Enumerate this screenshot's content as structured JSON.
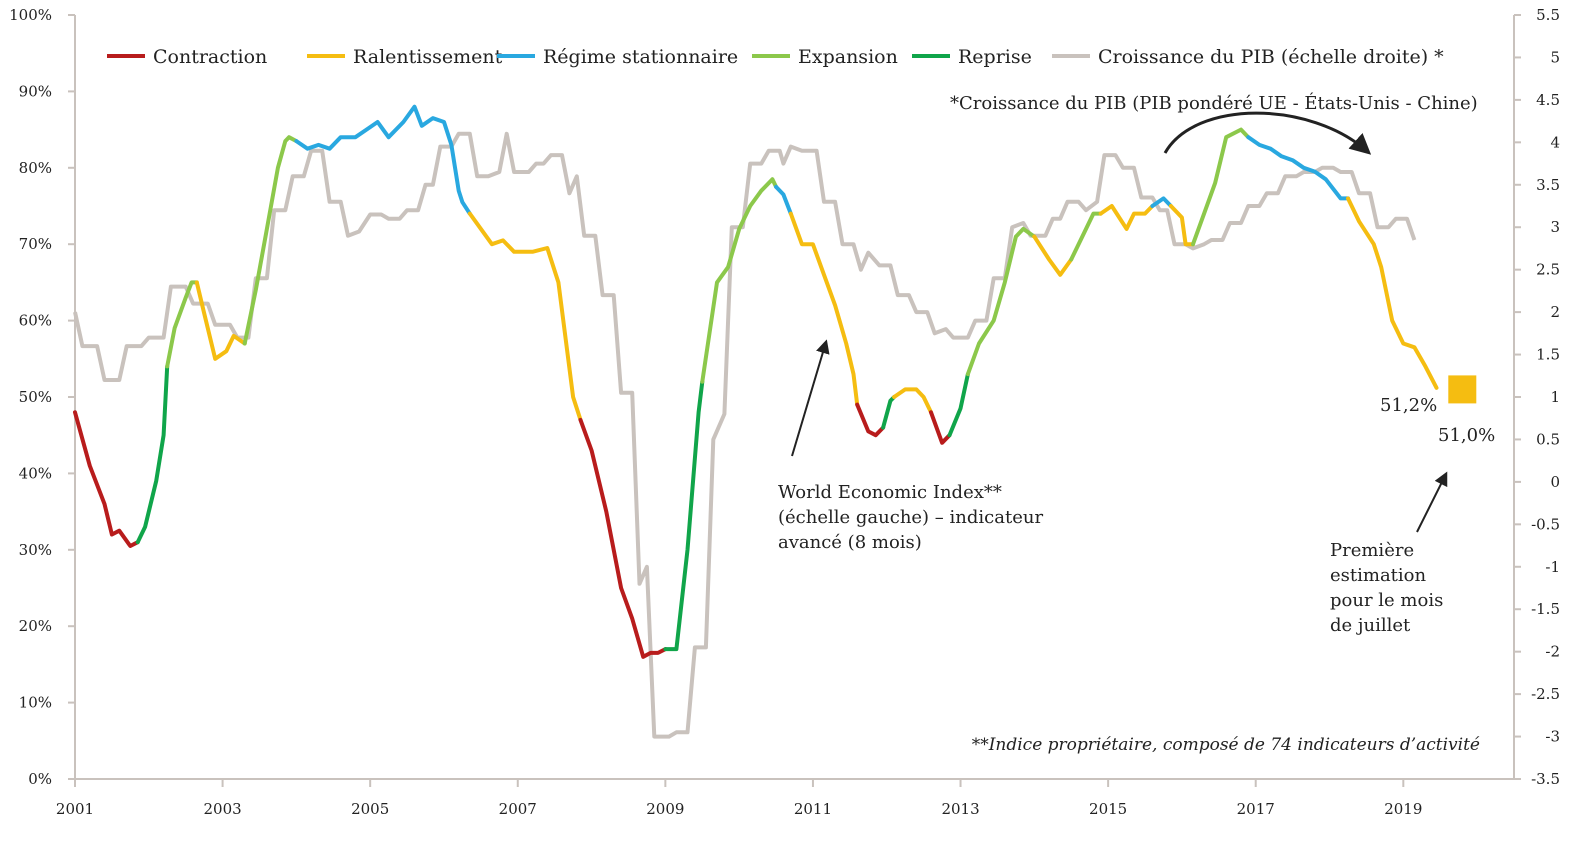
{
  "chart_data": {
    "type": "line",
    "title": "",
    "xlabel": "",
    "ylabel_left": "",
    "ylabel_right": "",
    "x_ticks": [
      "2001",
      "2003",
      "2005",
      "2007",
      "2009",
      "2011",
      "2013",
      "2015",
      "2017",
      "2019"
    ],
    "x_range": [
      2001,
      2020.5
    ],
    "y_left": {
      "range": [
        0,
        100
      ],
      "ticks": [
        "0%",
        "10%",
        "20%",
        "30%",
        "40%",
        "50%",
        "60%",
        "70%",
        "80%",
        "90%",
        "100%"
      ]
    },
    "y_right": {
      "range": [
        -3.5,
        5.5
      ],
      "ticks": [
        "-3.5",
        "-3",
        "-2.5",
        "-2",
        "-1.5",
        "-1",
        "-0.5",
        "0",
        "0.5",
        "1",
        "1.5",
        "2",
        "2.5",
        "3",
        "3.5",
        "4",
        "4.5",
        "5",
        "5.5"
      ]
    },
    "grid": false,
    "legend": {
      "placement": "top",
      "items": [
        {
          "label": "Contraction",
          "color": "#b81c1c"
        },
        {
          "label": "Ralentissement",
          "color": "#f5bd11"
        },
        {
          "label": "Régime stationnaire",
          "color": "#29a8e0"
        },
        {
          "label": "Expansion",
          "color": "#8cc84b"
        },
        {
          "label": "Reprise",
          "color": "#10a54a"
        },
        {
          "label": "Croissance du PIB (échelle droite) *",
          "color": "#c9c2bd"
        }
      ]
    },
    "phase_colors": {
      "C": "#b81c1c",
      "R": "#f5bd11",
      "S": "#29a8e0",
      "E": "#8cc84b",
      "P": "#10a54a"
    },
    "wei_series": {
      "name": "World Economic Index**",
      "points": [
        [
          2001.0,
          48,
          "C"
        ],
        [
          2001.2,
          41,
          "C"
        ],
        [
          2001.4,
          36,
          "C"
        ],
        [
          2001.5,
          32,
          "C"
        ],
        [
          2001.6,
          32.5,
          "C"
        ],
        [
          2001.75,
          30.5,
          "C"
        ],
        [
          2001.85,
          31,
          "P"
        ],
        [
          2001.95,
          33,
          "P"
        ],
        [
          2002.1,
          39,
          "P"
        ],
        [
          2002.2,
          45,
          "P"
        ],
        [
          2002.25,
          54,
          "E"
        ],
        [
          2002.35,
          59,
          "E"
        ],
        [
          2002.5,
          63,
          "E"
        ],
        [
          2002.58,
          65,
          "E"
        ],
        [
          2002.65,
          65,
          "R"
        ],
        [
          2002.75,
          61,
          "R"
        ],
        [
          2002.9,
          55,
          "R"
        ],
        [
          2003.05,
          56,
          "R"
        ],
        [
          2003.15,
          58,
          "R"
        ],
        [
          2003.3,
          57,
          "E"
        ],
        [
          2003.45,
          64,
          "E"
        ],
        [
          2003.6,
          72,
          "E"
        ],
        [
          2003.75,
          80,
          "E"
        ],
        [
          2003.85,
          83.5,
          "E"
        ],
        [
          2003.9,
          84,
          "E"
        ],
        [
          2004.0,
          83.5,
          "S"
        ],
        [
          2004.15,
          82.5,
          "S"
        ],
        [
          2004.3,
          83,
          "S"
        ],
        [
          2004.45,
          82.5,
          "S"
        ],
        [
          2004.6,
          84,
          "S"
        ],
        [
          2004.8,
          84,
          "S"
        ],
        [
          2004.95,
          85,
          "S"
        ],
        [
          2005.1,
          86,
          "S"
        ],
        [
          2005.25,
          84,
          "S"
        ],
        [
          2005.45,
          86,
          "S"
        ],
        [
          2005.6,
          88,
          "S"
        ],
        [
          2005.7,
          85.5,
          "S"
        ],
        [
          2005.85,
          86.5,
          "S"
        ],
        [
          2006.0,
          86,
          "S"
        ],
        [
          2006.1,
          83,
          "S"
        ],
        [
          2006.2,
          77,
          "S"
        ],
        [
          2006.25,
          75.5,
          "S"
        ],
        [
          2006.35,
          74,
          "R"
        ],
        [
          2006.5,
          72,
          "R"
        ],
        [
          2006.65,
          70,
          "R"
        ],
        [
          2006.8,
          70.5,
          "R"
        ],
        [
          2006.95,
          69,
          "R"
        ],
        [
          2007.2,
          69,
          "R"
        ],
        [
          2007.4,
          69.5,
          "R"
        ],
        [
          2007.55,
          65,
          "R"
        ],
        [
          2007.75,
          50,
          "R"
        ],
        [
          2007.85,
          47,
          "C"
        ],
        [
          2008.0,
          43,
          "C"
        ],
        [
          2008.2,
          35,
          "C"
        ],
        [
          2008.4,
          25,
          "C"
        ],
        [
          2008.55,
          21,
          "C"
        ],
        [
          2008.7,
          16,
          "C"
        ],
        [
          2008.8,
          16.5,
          "C"
        ],
        [
          2008.9,
          16.5,
          "C"
        ],
        [
          2009.0,
          17,
          "P"
        ],
        [
          2009.15,
          17,
          "P"
        ],
        [
          2009.3,
          30,
          "P"
        ],
        [
          2009.45,
          48,
          "P"
        ],
        [
          2009.5,
          52,
          "E"
        ],
        [
          2009.7,
          65,
          "E"
        ],
        [
          2009.85,
          67,
          "E"
        ],
        [
          2010.0,
          72,
          "E"
        ],
        [
          2010.15,
          75,
          "E"
        ],
        [
          2010.3,
          77,
          "E"
        ],
        [
          2010.45,
          78.5,
          "E"
        ],
        [
          2010.5,
          77.5,
          "S"
        ],
        [
          2010.6,
          76.5,
          "S"
        ],
        [
          2010.7,
          74,
          "R"
        ],
        [
          2010.85,
          70,
          "R"
        ],
        [
          2011.0,
          70,
          "R"
        ],
        [
          2011.15,
          66,
          "R"
        ],
        [
          2011.3,
          62,
          "R"
        ],
        [
          2011.45,
          57,
          "R"
        ],
        [
          2011.55,
          53,
          "R"
        ],
        [
          2011.6,
          49,
          "C"
        ],
        [
          2011.75,
          45.5,
          "C"
        ],
        [
          2011.85,
          45,
          "C"
        ],
        [
          2011.95,
          46,
          "P"
        ],
        [
          2012.05,
          49.5,
          "P"
        ],
        [
          2012.1,
          50,
          "R"
        ],
        [
          2012.25,
          51,
          "R"
        ],
        [
          2012.4,
          51,
          "R"
        ],
        [
          2012.5,
          50,
          "R"
        ],
        [
          2012.6,
          48,
          "C"
        ],
        [
          2012.75,
          44,
          "C"
        ],
        [
          2012.85,
          45,
          "P"
        ],
        [
          2013.0,
          48.5,
          "P"
        ],
        [
          2013.1,
          53,
          "E"
        ],
        [
          2013.25,
          57,
          "E"
        ],
        [
          2013.45,
          60,
          "E"
        ],
        [
          2013.6,
          65,
          "E"
        ],
        [
          2013.75,
          71,
          "E"
        ],
        [
          2013.85,
          72,
          "E"
        ],
        [
          2014.0,
          71,
          "R"
        ],
        [
          2014.2,
          68,
          "R"
        ],
        [
          2014.35,
          66,
          "R"
        ],
        [
          2014.5,
          68,
          "E"
        ],
        [
          2014.65,
          71,
          "E"
        ],
        [
          2014.8,
          74,
          "E"
        ],
        [
          2014.9,
          74,
          "R"
        ],
        [
          2015.05,
          75,
          "R"
        ],
        [
          2015.25,
          72,
          "R"
        ],
        [
          2015.35,
          74,
          "R"
        ],
        [
          2015.5,
          74,
          "R"
        ],
        [
          2015.6,
          75,
          "S"
        ],
        [
          2015.75,
          76,
          "S"
        ],
        [
          2015.85,
          75,
          "R"
        ],
        [
          2016.0,
          73.5,
          "R"
        ],
        [
          2016.05,
          70,
          "R"
        ],
        [
          2016.15,
          70,
          "E"
        ],
        [
          2016.3,
          74,
          "E"
        ],
        [
          2016.45,
          78,
          "E"
        ],
        [
          2016.6,
          84,
          "E"
        ],
        [
          2016.8,
          85,
          "E"
        ],
        [
          2016.9,
          84,
          "S"
        ],
        [
          2017.05,
          83,
          "S"
        ],
        [
          2017.2,
          82.5,
          "S"
        ],
        [
          2017.35,
          81.5,
          "S"
        ],
        [
          2017.5,
          81,
          "S"
        ],
        [
          2017.65,
          80,
          "S"
        ],
        [
          2017.8,
          79.5,
          "S"
        ],
        [
          2017.95,
          78.5,
          "S"
        ],
        [
          2018.15,
          76,
          "S"
        ],
        [
          2018.25,
          76,
          "R"
        ],
        [
          2018.4,
          73,
          "R"
        ],
        [
          2018.6,
          70,
          "R"
        ],
        [
          2018.7,
          67,
          "R"
        ],
        [
          2018.85,
          60,
          "R"
        ],
        [
          2019.0,
          57,
          "R"
        ],
        [
          2019.15,
          56.5,
          "R"
        ],
        [
          2019.3,
          54,
          "R"
        ],
        [
          2019.45,
          51.2,
          "R"
        ]
      ]
    },
    "gdp_series": {
      "name": "Croissance du PIB (échelle droite) *",
      "color": "#c9c2bd",
      "points": [
        [
          2001.0,
          2.0
        ],
        [
          2001.1,
          1.6
        ],
        [
          2001.3,
          1.6
        ],
        [
          2001.4,
          1.2
        ],
        [
          2001.6,
          1.2
        ],
        [
          2001.7,
          1.6
        ],
        [
          2001.9,
          1.6
        ],
        [
          2002.0,
          1.7
        ],
        [
          2002.2,
          1.7
        ],
        [
          2002.3,
          2.3
        ],
        [
          2002.5,
          2.3
        ],
        [
          2002.6,
          2.1
        ],
        [
          2002.8,
          2.1
        ],
        [
          2002.9,
          1.85
        ],
        [
          2003.1,
          1.85
        ],
        [
          2003.2,
          1.7
        ],
        [
          2003.35,
          1.7
        ],
        [
          2003.45,
          2.4
        ],
        [
          2003.6,
          2.4
        ],
        [
          2003.7,
          3.2
        ],
        [
          2003.85,
          3.2
        ],
        [
          2003.95,
          3.6
        ],
        [
          2004.1,
          3.6
        ],
        [
          2004.2,
          3.9
        ],
        [
          2004.35,
          3.9
        ],
        [
          2004.45,
          3.3
        ],
        [
          2004.6,
          3.3
        ],
        [
          2004.7,
          2.9
        ],
        [
          2004.85,
          2.95
        ],
        [
          2005.0,
          3.15
        ],
        [
          2005.15,
          3.15
        ],
        [
          2005.25,
          3.1
        ],
        [
          2005.4,
          3.1
        ],
        [
          2005.5,
          3.2
        ],
        [
          2005.65,
          3.2
        ],
        [
          2005.75,
          3.5
        ],
        [
          2005.85,
          3.5
        ],
        [
          2005.95,
          3.95
        ],
        [
          2006.1,
          3.95
        ],
        [
          2006.2,
          4.1
        ],
        [
          2006.35,
          4.1
        ],
        [
          2006.45,
          3.6
        ],
        [
          2006.6,
          3.6
        ],
        [
          2006.75,
          3.65
        ],
        [
          2006.85,
          4.1
        ],
        [
          2006.95,
          3.65
        ],
        [
          2007.15,
          3.65
        ],
        [
          2007.25,
          3.75
        ],
        [
          2007.35,
          3.75
        ],
        [
          2007.45,
          3.85
        ],
        [
          2007.6,
          3.85
        ],
        [
          2007.7,
          3.4
        ],
        [
          2007.8,
          3.6
        ],
        [
          2007.9,
          2.9
        ],
        [
          2008.05,
          2.9
        ],
        [
          2008.15,
          2.2
        ],
        [
          2008.3,
          2.2
        ],
        [
          2008.4,
          1.05
        ],
        [
          2008.55,
          1.05
        ],
        [
          2008.65,
          -1.2
        ],
        [
          2008.75,
          -1.0
        ],
        [
          2008.85,
          -3.0
        ],
        [
          2009.05,
          -3.0
        ],
        [
          2009.15,
          -2.95
        ],
        [
          2009.3,
          -2.95
        ],
        [
          2009.4,
          -1.95
        ],
        [
          2009.55,
          -1.95
        ],
        [
          2009.65,
          0.5
        ],
        [
          2009.8,
          0.8
        ],
        [
          2009.9,
          3.0
        ],
        [
          2010.05,
          3.0
        ],
        [
          2010.15,
          3.75
        ],
        [
          2010.3,
          3.75
        ],
        [
          2010.4,
          3.9
        ],
        [
          2010.55,
          3.9
        ],
        [
          2010.6,
          3.75
        ],
        [
          2010.7,
          3.95
        ],
        [
          2010.85,
          3.9
        ],
        [
          2011.05,
          3.9
        ],
        [
          2011.15,
          3.3
        ],
        [
          2011.3,
          3.3
        ],
        [
          2011.4,
          2.8
        ],
        [
          2011.55,
          2.8
        ],
        [
          2011.65,
          2.5
        ],
        [
          2011.75,
          2.7
        ],
        [
          2011.9,
          2.55
        ],
        [
          2012.05,
          2.55
        ],
        [
          2012.15,
          2.2
        ],
        [
          2012.3,
          2.2
        ],
        [
          2012.4,
          2.0
        ],
        [
          2012.55,
          2.0
        ],
        [
          2012.65,
          1.75
        ],
        [
          2012.8,
          1.8
        ],
        [
          2012.9,
          1.7
        ],
        [
          2013.1,
          1.7
        ],
        [
          2013.2,
          1.9
        ],
        [
          2013.35,
          1.9
        ],
        [
          2013.45,
          2.4
        ],
        [
          2013.6,
          2.4
        ],
        [
          2013.7,
          3.0
        ],
        [
          2013.85,
          3.05
        ],
        [
          2013.95,
          2.9
        ],
        [
          2014.15,
          2.9
        ],
        [
          2014.25,
          3.1
        ],
        [
          2014.35,
          3.1
        ],
        [
          2014.45,
          3.3
        ],
        [
          2014.6,
          3.3
        ],
        [
          2014.7,
          3.2
        ],
        [
          2014.85,
          3.3
        ],
        [
          2014.95,
          3.85
        ],
        [
          2015.1,
          3.85
        ],
        [
          2015.2,
          3.7
        ],
        [
          2015.35,
          3.7
        ],
        [
          2015.45,
          3.35
        ],
        [
          2015.6,
          3.35
        ],
        [
          2015.7,
          3.2
        ],
        [
          2015.8,
          3.2
        ],
        [
          2015.9,
          2.8
        ],
        [
          2016.05,
          2.8
        ],
        [
          2016.15,
          2.75
        ],
        [
          2016.3,
          2.8
        ],
        [
          2016.4,
          2.85
        ],
        [
          2016.55,
          2.85
        ],
        [
          2016.65,
          3.05
        ],
        [
          2016.8,
          3.05
        ],
        [
          2016.9,
          3.25
        ],
        [
          2017.05,
          3.25
        ],
        [
          2017.15,
          3.4
        ],
        [
          2017.3,
          3.4
        ],
        [
          2017.4,
          3.6
        ],
        [
          2017.55,
          3.6
        ],
        [
          2017.65,
          3.65
        ],
        [
          2017.8,
          3.65
        ],
        [
          2017.9,
          3.7
        ],
        [
          2018.05,
          3.7
        ],
        [
          2018.15,
          3.65
        ],
        [
          2018.3,
          3.65
        ],
        [
          2018.4,
          3.4
        ],
        [
          2018.55,
          3.4
        ],
        [
          2018.65,
          3.0
        ],
        [
          2018.8,
          3.0
        ],
        [
          2018.9,
          3.1
        ],
        [
          2019.05,
          3.1
        ],
        [
          2019.15,
          2.85
        ]
      ]
    },
    "july_estimate": {
      "x": 2019.8,
      "value": 51.0,
      "label": "51,0%",
      "color": "#f5bd11"
    },
    "last_value_label": "51,2%",
    "annotations": {
      "gdp_note": "*Croissance du PIB (PIB pondéré UE - États-Unis - Chine)",
      "wei_note": [
        "World Economic Index**",
        "(échelle gauche) – indicateur",
        "avancé (8 mois)"
      ],
      "estimate_note": [
        "Première",
        "estimation",
        "pour le mois",
        "de juillet"
      ],
      "footnote": "**Indice propriétaire, composé de 74 indicateurs d’activité"
    }
  }
}
